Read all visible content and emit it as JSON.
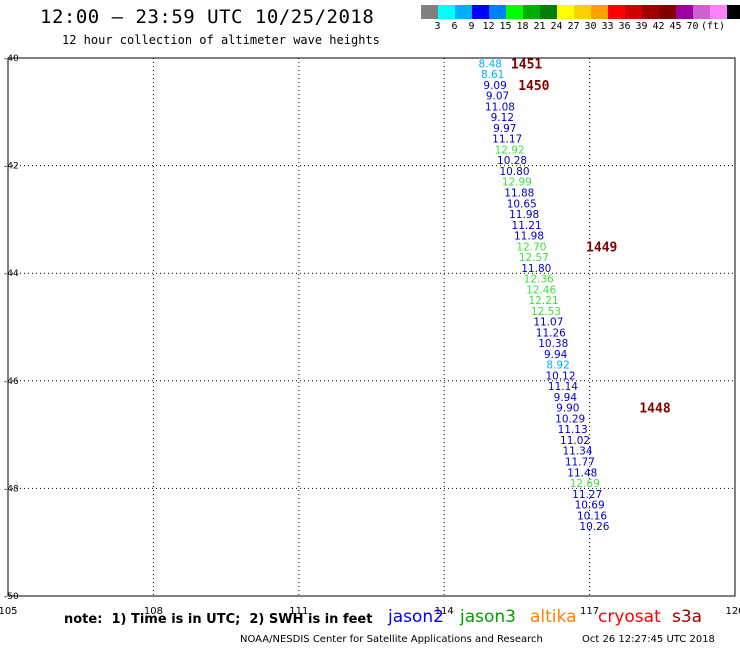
{
  "header": {
    "title": "12:00 – 23:59 UTC 10/25/2018",
    "subtitle": "12 hour collection of altimeter wave heights"
  },
  "legend": {
    "colors": [
      "#808080",
      "#00ffff",
      "#00b0ff",
      "#0000ff",
      "#0080ff",
      "#00ff00",
      "#00b000",
      "#008000",
      "#ffff00",
      "#ffd000",
      "#ffa000",
      "#ff0000",
      "#d00000",
      "#a00000",
      "#800000",
      "#a000a0",
      "#d060d0",
      "#ff80ff",
      "#000000"
    ],
    "labels": [
      "3",
      "6",
      "9",
      "12",
      "15",
      "18",
      "21",
      "24",
      "27",
      "30",
      "33",
      "36",
      "39",
      "42",
      "45",
      "70",
      "(ft)"
    ]
  },
  "chart_data": {
    "type": "scatter",
    "title": "12:00 – 23:59 UTC 10/25/2018",
    "subtitle": "12 hour collection of altimeter wave heights",
    "xlim": [
      105,
      120
    ],
    "ylim": [
      -50,
      -40
    ],
    "xticks": [
      "105",
      "108",
      "111",
      "114",
      "117",
      "120"
    ],
    "yticks": [
      "-40",
      "-42",
      "-44",
      "-46",
      "-48",
      "-50"
    ],
    "grid": true,
    "units": "ft",
    "points": [
      {
        "lon": 114.95,
        "lat": -40.1,
        "label": "8.48",
        "color": "#00b0ff"
      },
      {
        "lon": 115.0,
        "lat": -40.3,
        "label": "8.61",
        "color": "#00b0ff"
      },
      {
        "lon": 115.05,
        "lat": -40.5,
        "label": "9.09",
        "color": "#0000cc"
      },
      {
        "lon": 115.1,
        "lat": -40.7,
        "label": "9.07",
        "color": "#0000cc"
      },
      {
        "lon": 115.15,
        "lat": -40.9,
        "label": "11.08",
        "color": "#0000cc"
      },
      {
        "lon": 115.2,
        "lat": -41.1,
        "label": "9.12",
        "color": "#0000cc"
      },
      {
        "lon": 115.25,
        "lat": -41.3,
        "label": "9.97",
        "color": "#0000cc"
      },
      {
        "lon": 115.3,
        "lat": -41.5,
        "label": "11.17",
        "color": "#0000cc"
      },
      {
        "lon": 115.35,
        "lat": -41.7,
        "label": "12.92",
        "color": "#40e040"
      },
      {
        "lon": 115.4,
        "lat": -41.9,
        "label": "10.28",
        "color": "#0000cc"
      },
      {
        "lon": 115.45,
        "lat": -42.1,
        "label": "10.80",
        "color": "#0000cc"
      },
      {
        "lon": 115.5,
        "lat": -42.3,
        "label": "12.99",
        "color": "#40e040"
      },
      {
        "lon": 115.55,
        "lat": -42.5,
        "label": "11.88",
        "color": "#0000cc"
      },
      {
        "lon": 115.6,
        "lat": -42.7,
        "label": "10.65",
        "color": "#0000cc"
      },
      {
        "lon": 115.65,
        "lat": -42.9,
        "label": "11.98",
        "color": "#0000cc"
      },
      {
        "lon": 115.7,
        "lat": -43.1,
        "label": "11.21",
        "color": "#0000cc"
      },
      {
        "lon": 115.75,
        "lat": -43.3,
        "label": "11.98",
        "color": "#0000cc"
      },
      {
        "lon": 115.8,
        "lat": -43.5,
        "label": "12.70",
        "color": "#40e040"
      },
      {
        "lon": 115.85,
        "lat": -43.7,
        "label": "12.57",
        "color": "#40e040"
      },
      {
        "lon": 115.9,
        "lat": -43.9,
        "label": "11.80",
        "color": "#0000cc"
      },
      {
        "lon": 115.95,
        "lat": -44.1,
        "label": "12.36",
        "color": "#40e040"
      },
      {
        "lon": 116.0,
        "lat": -44.3,
        "label": "12.46",
        "color": "#40e040"
      },
      {
        "lon": 116.05,
        "lat": -44.5,
        "label": "12.21",
        "color": "#40e040"
      },
      {
        "lon": 116.1,
        "lat": -44.7,
        "label": "12.53",
        "color": "#40e040"
      },
      {
        "lon": 116.15,
        "lat": -44.9,
        "label": "11.07",
        "color": "#0000cc"
      },
      {
        "lon": 116.2,
        "lat": -45.1,
        "label": "11.26",
        "color": "#0000cc"
      },
      {
        "lon": 116.25,
        "lat": -45.3,
        "label": "10.38",
        "color": "#0000cc"
      },
      {
        "lon": 116.3,
        "lat": -45.5,
        "label": "9.94",
        "color": "#0000cc"
      },
      {
        "lon": 116.35,
        "lat": -45.7,
        "label": "8.92",
        "color": "#00b0ff"
      },
      {
        "lon": 116.4,
        "lat": -45.9,
        "label": "10.12",
        "color": "#0000cc"
      },
      {
        "lon": 116.45,
        "lat": -46.1,
        "label": "11.14",
        "color": "#0000cc"
      },
      {
        "lon": 116.5,
        "lat": -46.3,
        "label": "9.94",
        "color": "#0000cc"
      },
      {
        "lon": 116.55,
        "lat": -46.5,
        "label": "9.90",
        "color": "#0000cc"
      },
      {
        "lon": 116.6,
        "lat": -46.7,
        "label": "10.29",
        "color": "#0000cc"
      },
      {
        "lon": 116.65,
        "lat": -46.9,
        "label": "11.13",
        "color": "#0000cc"
      },
      {
        "lon": 116.7,
        "lat": -47.1,
        "label": "11.02",
        "color": "#0000cc"
      },
      {
        "lon": 116.75,
        "lat": -47.3,
        "label": "11.34",
        "color": "#0000cc"
      },
      {
        "lon": 116.8,
        "lat": -47.5,
        "label": "11.77",
        "color": "#0000cc"
      },
      {
        "lon": 116.85,
        "lat": -47.7,
        "label": "11.48",
        "color": "#0000cc"
      },
      {
        "lon": 116.9,
        "lat": -47.9,
        "label": "12.69",
        "color": "#40e040"
      },
      {
        "lon": 116.95,
        "lat": -48.1,
        "label": "11.27",
        "color": "#0000cc"
      },
      {
        "lon": 117.0,
        "lat": -48.3,
        "label": "10.69",
        "color": "#0000cc"
      },
      {
        "lon": 117.05,
        "lat": -48.5,
        "label": "10.16",
        "color": "#0000cc"
      },
      {
        "lon": 117.1,
        "lat": -48.7,
        "label": "10.26",
        "color": "#0000cc"
      }
    ],
    "pass_labels": [
      {
        "lon": 115.7,
        "lat": -40.1,
        "label": "1451",
        "color": "#800000"
      },
      {
        "lon": 115.85,
        "lat": -40.5,
        "label": "1450",
        "color": "#800000"
      },
      {
        "lon": 117.25,
        "lat": -43.5,
        "label": "1449",
        "color": "#800000"
      },
      {
        "lon": 118.35,
        "lat": -46.5,
        "label": "1448",
        "color": "#800000"
      }
    ]
  },
  "note": "note:  1) Time is in UTC;  2) SWH is in feet",
  "satellites": [
    {
      "name": "jason2",
      "color": "#0000ff"
    },
    {
      "name": "jason3",
      "color": "#00a000"
    },
    {
      "name": "altika",
      "color": "#ff8000"
    },
    {
      "name": "cryosat",
      "color": "#ff0000"
    },
    {
      "name": "s3a",
      "color": "#a00000"
    }
  ],
  "footer": {
    "source": "NOAA/NESDIS Center for Satellite Applications and Research",
    "timestamp": "Oct 26 12:27:45 UTC 2018"
  }
}
